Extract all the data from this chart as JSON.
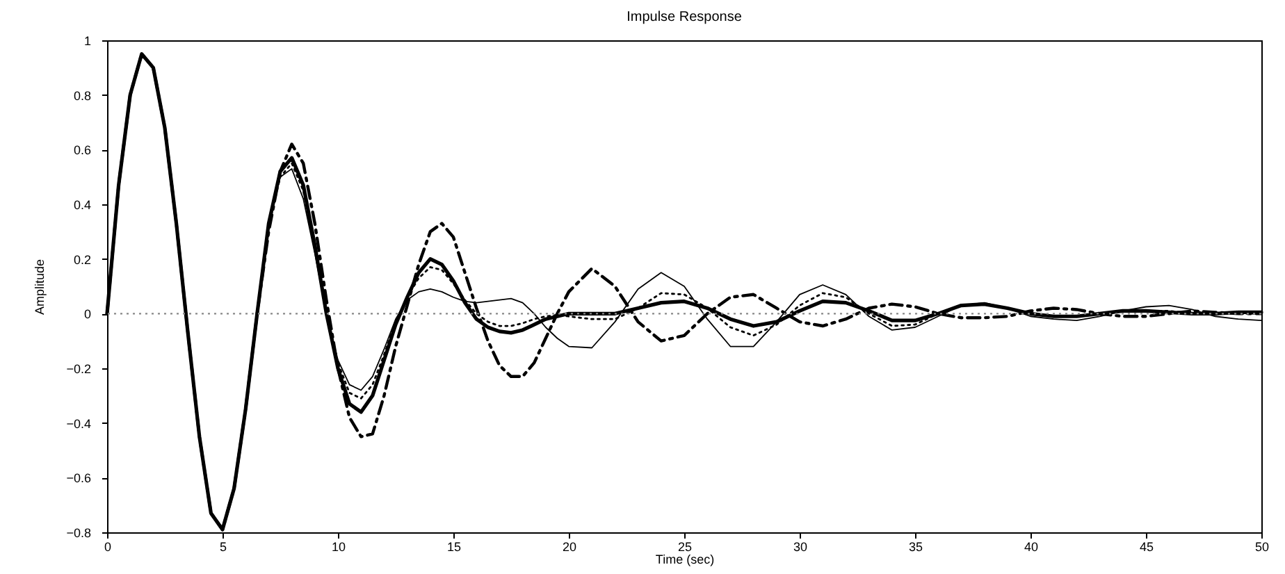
{
  "chart_data": {
    "type": "line",
    "title": "Impulse Response",
    "xlabel": "Time (sec)",
    "ylabel": "Amplitude",
    "x": [
      0,
      0.5,
      1,
      1.5,
      2,
      2.5,
      3,
      3.5,
      4,
      4.5,
      5,
      5.5,
      6,
      6.5,
      7,
      7.5,
      8,
      8.5,
      9,
      9.5,
      10,
      10.5,
      11,
      11.5,
      12,
      12.5,
      13,
      13.5,
      14,
      14.5,
      15,
      15.5,
      16,
      16.5,
      17,
      17.5,
      18,
      18.5,
      19,
      19.5,
      20,
      21,
      22,
      23,
      24,
      25,
      26,
      27,
      28,
      29,
      30,
      31,
      32,
      33,
      34,
      35,
      36,
      37,
      38,
      39,
      40,
      41,
      42,
      43,
      44,
      45,
      46,
      47,
      48,
      49,
      50
    ],
    "series": [
      {
        "color": "#000000",
        "line_style": "solid",
        "values": [
          0,
          0.47,
          0.8,
          0.95,
          0.9,
          0.68,
          0.33,
          -0.07,
          -0.45,
          -0.73,
          -0.79,
          -0.64,
          -0.35,
          0.0,
          0.33,
          0.52,
          0.57,
          0.47,
          0.25,
          0.0,
          -0.2,
          -0.33,
          -0.36,
          -0.3,
          -0.17,
          -0.04,
          0.06,
          0.15,
          0.2,
          0.18,
          0.12,
          0.04,
          -0.02,
          -0.05,
          -0.065,
          -0.07,
          -0.06,
          -0.04,
          -0.02,
          -0.01,
          0.0,
          0.0,
          0.0,
          0.02,
          0.04,
          0.045,
          0.02,
          -0.02,
          -0.045,
          -0.03,
          0.01,
          0.045,
          0.04,
          0.01,
          -0.025,
          -0.025,
          0.0,
          0.03,
          0.035,
          0.02,
          0.0,
          -0.01,
          -0.01,
          0.0,
          0.01,
          0.01,
          0.005,
          0.0,
          0.0,
          0.005,
          0.005
        ]
      },
      {
        "color": "#000000",
        "line_style": "solid",
        "values": [
          0,
          0.47,
          0.8,
          0.95,
          0.9,
          0.68,
          0.33,
          -0.07,
          -0.45,
          -0.73,
          -0.79,
          -0.64,
          -0.35,
          0.0,
          0.33,
          0.5,
          0.53,
          0.42,
          0.22,
          0.0,
          -0.17,
          -0.26,
          -0.28,
          -0.23,
          -0.13,
          -0.02,
          0.05,
          0.08,
          0.09,
          0.08,
          0.06,
          0.045,
          0.04,
          0.045,
          0.05,
          0.055,
          0.04,
          0.0,
          -0.05,
          -0.09,
          -0.12,
          -0.125,
          -0.03,
          0.09,
          0.15,
          0.1,
          -0.02,
          -0.12,
          -0.12,
          -0.03,
          0.07,
          0.105,
          0.07,
          -0.01,
          -0.06,
          -0.05,
          -0.01,
          0.03,
          0.04,
          0.02,
          -0.01,
          -0.02,
          -0.025,
          -0.01,
          0.01,
          0.025,
          0.03,
          0.015,
          -0.01,
          -0.02,
          -0.025
        ]
      },
      {
        "color": "#000000",
        "line_style": "dotted",
        "values": [
          0,
          0.47,
          0.8,
          0.95,
          0.9,
          0.68,
          0.33,
          -0.07,
          -0.45,
          -0.73,
          -0.79,
          -0.64,
          -0.35,
          0.0,
          0.32,
          0.5,
          0.55,
          0.45,
          0.24,
          0.0,
          -0.18,
          -0.29,
          -0.31,
          -0.26,
          -0.15,
          -0.03,
          0.06,
          0.13,
          0.17,
          0.16,
          0.11,
          0.05,
          0.0,
          -0.03,
          -0.045,
          -0.045,
          -0.035,
          -0.02,
          -0.01,
          -0.005,
          -0.01,
          -0.02,
          -0.02,
          0.02,
          0.075,
          0.07,
          0.02,
          -0.05,
          -0.08,
          -0.04,
          0.03,
          0.075,
          0.06,
          0.0,
          -0.045,
          -0.04,
          0.0,
          0.03,
          0.035,
          0.02,
          0.0,
          -0.01,
          -0.01,
          0.0,
          0.01,
          0.01,
          0.01,
          0.0,
          0.0,
          0.0,
          0.0
        ]
      },
      {
        "color": "#000000",
        "line_style": "dashed",
        "values": [
          0,
          0.47,
          0.8,
          0.95,
          0.9,
          0.68,
          0.33,
          -0.07,
          -0.45,
          -0.73,
          -0.79,
          -0.64,
          -0.35,
          0.0,
          0.3,
          0.52,
          0.62,
          0.55,
          0.33,
          0.05,
          -0.2,
          -0.38,
          -0.45,
          -0.44,
          -0.3,
          -0.12,
          0.03,
          0.18,
          0.3,
          0.33,
          0.28,
          0.15,
          0.02,
          -0.1,
          -0.19,
          -0.23,
          -0.23,
          -0.18,
          -0.09,
          0.0,
          0.08,
          0.165,
          0.1,
          -0.03,
          -0.1,
          -0.08,
          0.0,
          0.06,
          0.07,
          0.02,
          -0.03,
          -0.045,
          -0.02,
          0.02,
          0.035,
          0.025,
          0.0,
          -0.015,
          -0.015,
          -0.01,
          0.01,
          0.02,
          0.015,
          0.0,
          -0.01,
          -0.01,
          0.0,
          0.01,
          0.005,
          0.0,
          0.0
        ]
      }
    ],
    "xlim": [
      0,
      50
    ],
    "xticks": [
      0,
      5,
      10,
      15,
      20,
      25,
      30,
      35,
      40,
      45,
      50
    ],
    "ylim": [
      -0.8,
      1
    ],
    "yticks": [
      -0.8,
      -0.6,
      -0.4,
      -0.2,
      0,
      0.2,
      0.4,
      0.6,
      0.8,
      1
    ],
    "ref_lines": [
      {
        "axis": "y",
        "value": 0,
        "line_style": "dotted",
        "color": "#888888"
      }
    ],
    "grid": false
  }
}
